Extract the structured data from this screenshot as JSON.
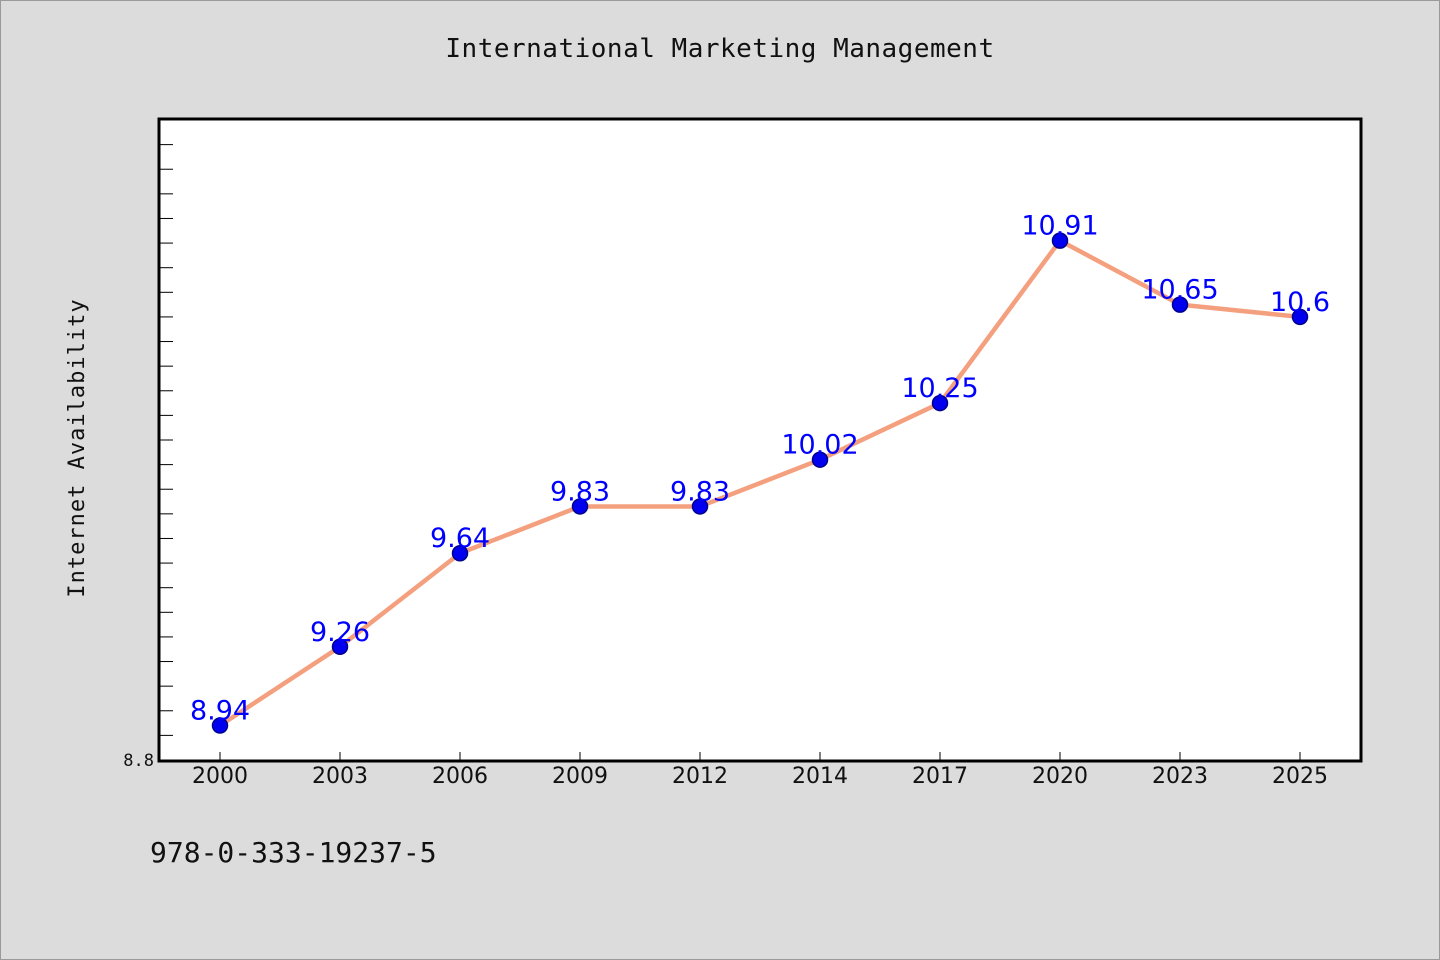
{
  "page": {
    "footer_code": "978-0-333-19237-5"
  },
  "chart_data": {
    "type": "line",
    "title": "International Marketing Management",
    "xlabel": "",
    "ylabel": "Internet Availability",
    "categories": [
      "2000",
      "2003",
      "2006",
      "2009",
      "2012",
      "2014",
      "2017",
      "2020",
      "2023",
      "2025"
    ],
    "series": [
      {
        "values": [
          8.94,
          9.26,
          9.64,
          9.83,
          9.83,
          10.02,
          10.25,
          10.91,
          10.65,
          10.6
        ]
      }
    ],
    "data_labels": [
      "8.94",
      "9.26",
      "9.64",
      "9.83",
      "9.83",
      "10.02",
      "10.25",
      "10.91",
      "10.65",
      "10.6"
    ],
    "ylim": [
      8.8,
      11.4
    ],
    "y_min_label": "8.8",
    "grid": false,
    "legend": "none",
    "colors": {
      "line": "#f4a07e",
      "marker": "#0000ee",
      "marker_edge": "#00008b",
      "data_label": "#0000ff",
      "plot_background": "#ffffff",
      "figure_background": "#dcdcdc"
    }
  }
}
